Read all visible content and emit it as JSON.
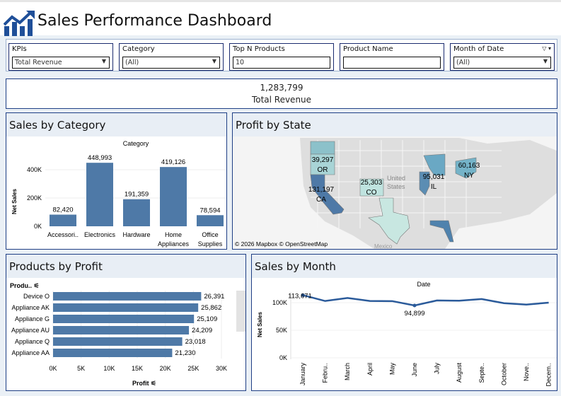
{
  "header": {
    "title": "Sales Performance Dashboard",
    "logo_icon": "rising-bar-chart-icon"
  },
  "filters": [
    {
      "label": "KPIs",
      "value": "Total Revenue",
      "type": "dropdown"
    },
    {
      "label": "Category",
      "value": "(All)",
      "type": "dropdown"
    },
    {
      "label": "Top N Products",
      "value": "10",
      "type": "text"
    },
    {
      "label": "Product Name",
      "value": "",
      "type": "text"
    },
    {
      "label": "Month of Date",
      "value": "(All)",
      "type": "dropdown"
    }
  ],
  "kpi": {
    "value": "1,283,799",
    "label": "Total Revenue"
  },
  "colors": {
    "bar": "#4e79a7",
    "border": "#1f3f85",
    "panel_header": "#e8eef5"
  },
  "panels": {
    "category": "Sales by Category",
    "state": "Profit by State",
    "products": "Products by Profit",
    "month": "Sales by Month"
  },
  "map": {
    "attribution": "© 2026 Mapbox  © OpenStreetMap",
    "country_label_1": "United",
    "country_label_2": "States",
    "mexico": "Mexico"
  },
  "chart_data": [
    {
      "type": "bar",
      "title": "Sales by Category",
      "xlabel": "Category",
      "ylabel": "Net Sales",
      "categories": [
        "Accessori..",
        "Electronics",
        "Hardware",
        "Home Appliances",
        "Office Supplies"
      ],
      "values": [
        82420,
        448993,
        191359,
        419126,
        78594
      ],
      "value_labels": [
        "82,420",
        "448,993",
        "191,359",
        "419,126",
        "78,594"
      ],
      "yticks": [
        "0K",
        "200K",
        "400K"
      ],
      "ylim": [
        0,
        550000
      ]
    },
    {
      "type": "map",
      "title": "Profit by State",
      "states": [
        {
          "code": "OR",
          "value": 39297,
          "label": "39,297"
        },
        {
          "code": "CA",
          "value": 131197,
          "label": "131,197"
        },
        {
          "code": "CO",
          "value": 25303,
          "label": "25,303"
        },
        {
          "code": "IL",
          "value": 95031,
          "label": "95,031"
        },
        {
          "code": "NY",
          "value": 60163,
          "label": "60,163"
        }
      ]
    },
    {
      "type": "bar",
      "orientation": "horizontal",
      "title": "Products by Profit",
      "ylabel": "Produ..",
      "xlabel": "Profit",
      "categories": [
        "Device O",
        "Appliance AK",
        "Appliance G",
        "Appliance AU",
        "Appliance Q",
        "Appliance AA"
      ],
      "values": [
        26391,
        25862,
        25109,
        24209,
        23018,
        21230
      ],
      "value_labels": [
        "26,391",
        "25,862",
        "25,109",
        "24,209",
        "23,018",
        "21,230"
      ],
      "xticks": [
        "0K",
        "5K",
        "10K",
        "15K",
        "20K",
        "25K",
        "30K"
      ],
      "xlim": [
        0,
        30000
      ]
    },
    {
      "type": "line",
      "title": "Sales by Month",
      "xlabel": "Date",
      "ylabel": "Net Sales",
      "categories": [
        "January",
        "Febru..",
        "March",
        "April",
        "May",
        "June",
        "July",
        "August",
        "Septe..",
        "October",
        "Nove..",
        "Decem.."
      ],
      "values": [
        113671,
        103000,
        108500,
        103000,
        102800,
        94899,
        104000,
        103500,
        106500,
        99000,
        96500,
        100000
      ],
      "annotations": [
        {
          "index": 0,
          "label": "113,671"
        },
        {
          "index": 5,
          "label": "94,899"
        }
      ],
      "yticks": [
        "0K",
        "50K",
        "100K"
      ],
      "ylim": [
        0,
        125000
      ]
    }
  ]
}
